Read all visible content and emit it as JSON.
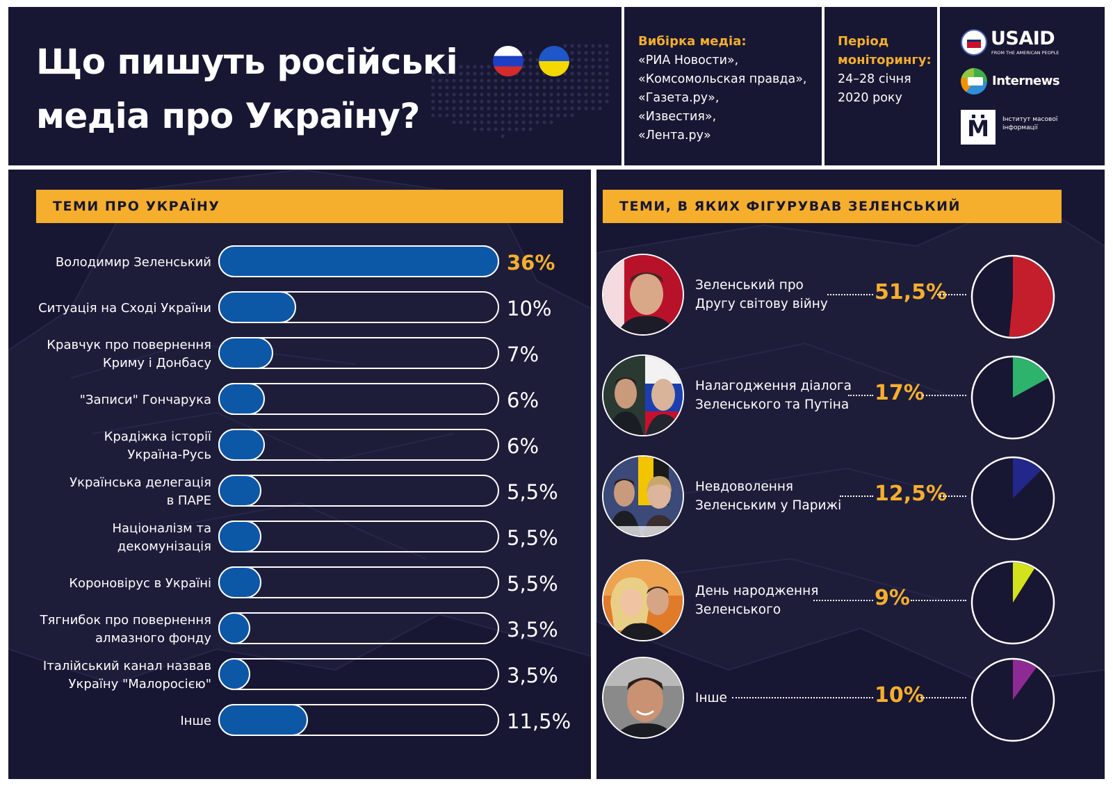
{
  "header": {
    "title_line1": "Що пишуть російські",
    "title_line2": "медіа про Україну?",
    "media_label": "Вибірка медіа:",
    "media_list": [
      "«РИА Новости»,",
      "«Комсомольская правда»,",
      "«Газета.ру»,",
      "«Известия»,",
      "«Лента.ру»"
    ],
    "period_label": "Період моніторингу:",
    "period_lines": [
      "24–28 січня",
      "2020 року"
    ],
    "logos": {
      "usaid": "USAID",
      "usaid_sub": "FROM THE AMERICAN PEOPLE",
      "internews": "Internews",
      "imi_mark": "М",
      "imi_text": "Інститут масової інформації"
    }
  },
  "colors": {
    "background": "#171733",
    "accent": "#f6ae2d",
    "bar": "#0d57a7",
    "pie_colors": [
      "#c41e2c",
      "#2db36b",
      "#23278a",
      "#d4e21c",
      "#8e2a93"
    ]
  },
  "left_section": {
    "title": "ТЕМИ ПРО УКРАЇНУ"
  },
  "right_section": {
    "title": "ТЕМИ, В ЯКИХ ФІГУРУВАВ ЗЕЛЕНСЬКИЙ"
  },
  "chart_data": [
    {
      "type": "bar",
      "orientation": "horizontal",
      "title": "ТЕМИ ПРО УКРАЇНУ",
      "categories": [
        "Володимир Зеленський",
        "Ситуація на Сході України",
        "Кравчук про повернення\nКриму і Донбасу",
        "\"Записи\" Гончарука",
        "Крадіжка історії\nУкраїна-Русь",
        "Українська делегація\nв ПАРЕ",
        "Націоналізм та\nдекомунізація",
        "Короновірус в Україні",
        "Тягнибок про повернення\nалмазного фонду",
        "Італійський канал назвав\nУкраїну \"Малоросією\"",
        "Інше"
      ],
      "values": [
        36,
        10,
        7,
        6,
        6,
        5.5,
        5.5,
        5.5,
        3.5,
        3.5,
        11.5
      ],
      "value_labels": [
        "36%",
        "10%",
        "7%",
        "6%",
        "6%",
        "5,5%",
        "5,5%",
        "5,5%",
        "3,5%",
        "3,5%",
        "11,5%"
      ],
      "xlim": [
        0,
        36
      ],
      "unit": "%"
    },
    {
      "type": "pie",
      "title": "ТЕМИ, В ЯКИХ ФІГУРУВАВ ЗЕЛЕНСЬКИЙ",
      "categories": [
        "Зеленський про\nДругу світову війну",
        "Налагодження діалога\nЗеленського та Путіна",
        "Невдоволення\nЗеленським у Парижі",
        "День народження\nЗеленського",
        "Інше"
      ],
      "values": [
        51.5,
        17,
        12.5,
        9,
        10
      ],
      "value_labels": [
        "51,5%",
        "17%",
        "12,5%",
        "9%",
        "10%"
      ],
      "unit": "%"
    }
  ]
}
